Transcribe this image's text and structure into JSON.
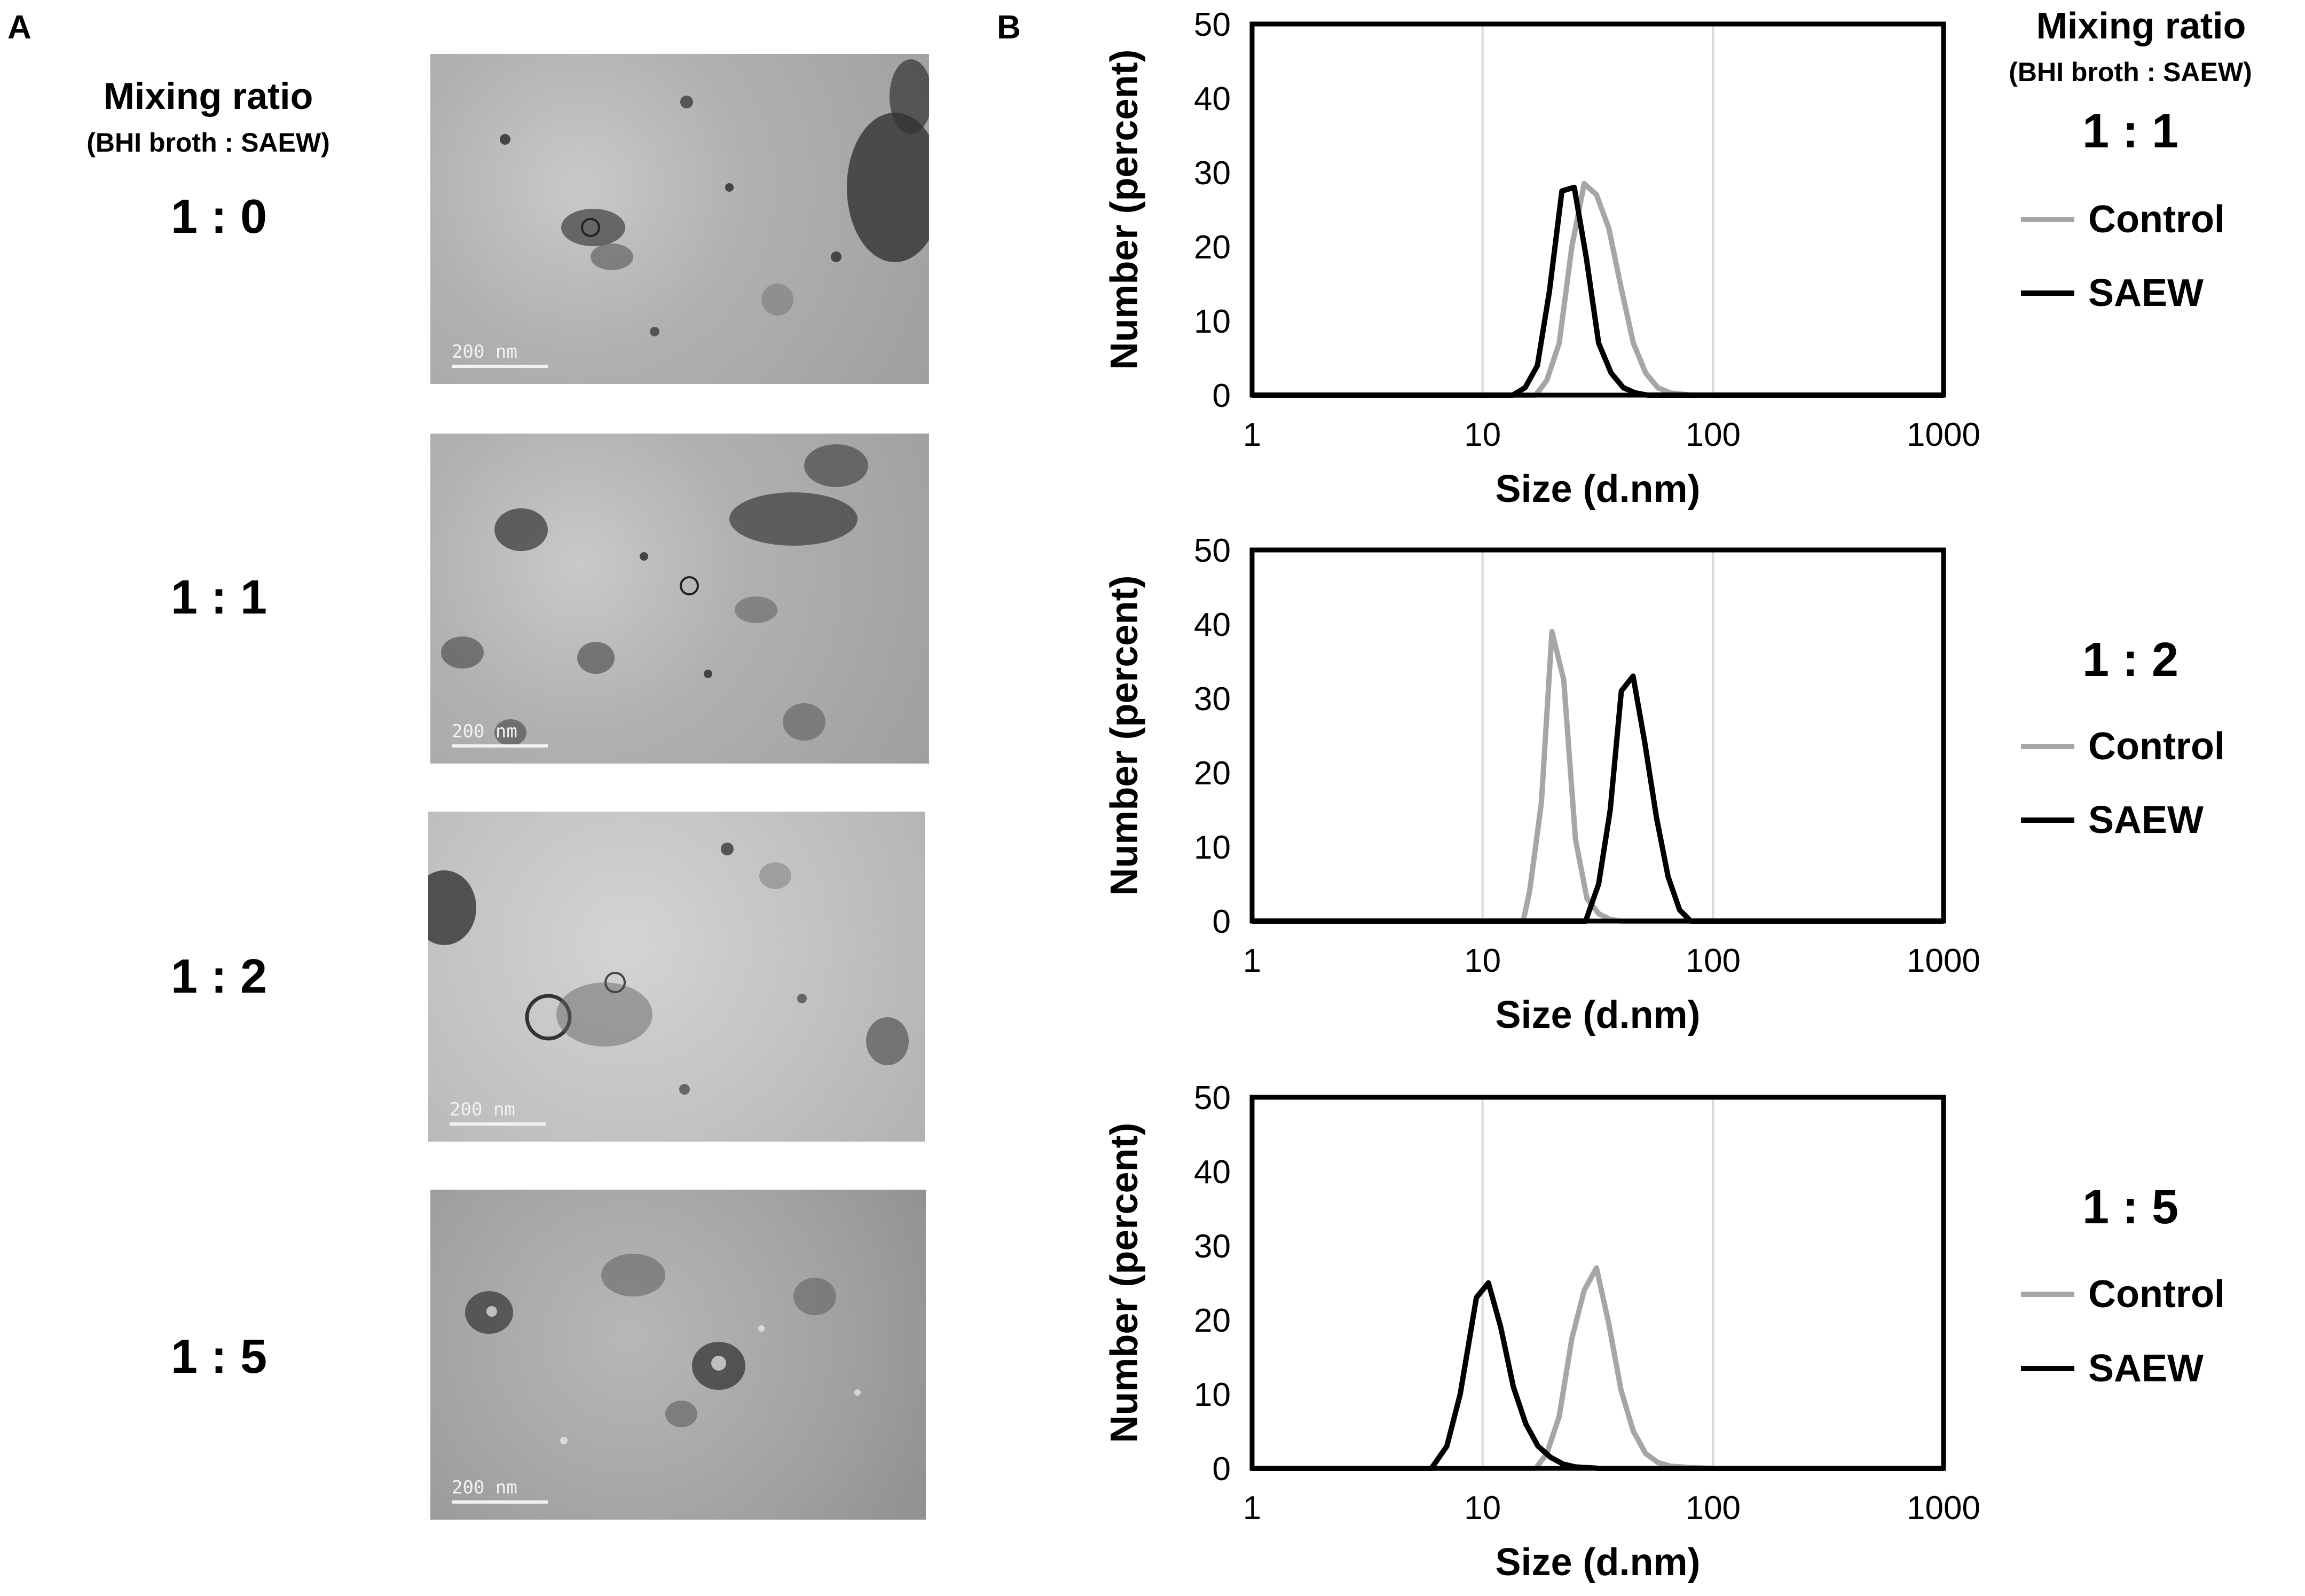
{
  "panel_a": {
    "letter": "A",
    "mixing_title": "Mixing ratio",
    "mixing_subtitle": "(BHI broth : SAEW)",
    "rows": [
      {
        "ratio": "1 : 0",
        "scale_label": "200 nm"
      },
      {
        "ratio": "1 : 1",
        "scale_label": "200 nm"
      },
      {
        "ratio": "1 : 2",
        "scale_label": "200 nm"
      },
      {
        "ratio": "1 : 5",
        "scale_label": "200 nm"
      }
    ]
  },
  "panel_b": {
    "letter": "B",
    "mixing_title": "Mixing ratio",
    "mixing_subtitle": "(BHI broth : SAEW)"
  },
  "colors": {
    "control": "#a6a6a6",
    "saew": "#000000",
    "grid": "#d9d9d9"
  },
  "chart_data": [
    {
      "type": "line",
      "ratio": "1 : 1",
      "xlabel": "Size (d.nm)",
      "ylabel": "Number (percent)",
      "x_scale": "log",
      "xlim": [
        1,
        1000
      ],
      "ylim": [
        0,
        50
      ],
      "x_ticks": [
        "1",
        "10",
        "100",
        "1000"
      ],
      "y_ticks": [
        "0",
        "10",
        "20",
        "30",
        "40",
        "50"
      ],
      "legend_position": "right",
      "series": [
        {
          "name": "Control",
          "x": [
            1,
            17,
            19,
            21.5,
            24.4,
            27.6,
            31.2,
            35.3,
            39.9,
            45.1,
            51,
            57.6,
            65.2,
            80,
            100,
            1000
          ],
          "y": [
            0,
            0,
            2,
            7,
            20,
            28.5,
            27,
            22.5,
            14.5,
            7,
            3,
            1,
            0.3,
            0,
            0,
            0
          ]
        },
        {
          "name": "SAEW",
          "x": [
            1,
            13.5,
            15.3,
            17.3,
            19.5,
            22.1,
            25,
            28.2,
            31.9,
            36.1,
            40.8,
            46,
            52,
            60,
            100,
            1000
          ],
          "y": [
            0,
            0,
            1,
            4,
            14,
            27.5,
            28,
            18.5,
            7,
            3,
            1,
            0.3,
            0,
            0,
            0,
            0
          ]
        }
      ]
    },
    {
      "type": "line",
      "ratio": "1 : 2",
      "xlabel": "Size (d.nm)",
      "ylabel": "Number (percent)",
      "x_scale": "log",
      "xlim": [
        1,
        1000
      ],
      "ylim": [
        0,
        50
      ],
      "x_ticks": [
        "1",
        "10",
        "100",
        "1000"
      ],
      "y_ticks": [
        "0",
        "10",
        "20",
        "30",
        "40",
        "50"
      ],
      "legend_position": "right",
      "series": [
        {
          "name": "Control",
          "x": [
            1,
            15,
            16,
            18,
            20,
            22.5,
            25.3,
            28.4,
            31.9,
            35.8,
            40,
            45,
            80,
            1000
          ],
          "y": [
            0,
            0,
            4,
            16,
            39,
            32.5,
            11,
            3,
            1,
            0.2,
            0,
            0,
            0,
            0
          ]
        },
        {
          "name": "SAEW",
          "x": [
            1,
            28,
            31.9,
            35.8,
            40,
            45,
            50.6,
            56.8,
            63.8,
            71.6,
            80,
            100,
            1000
          ],
          "y": [
            0,
            0,
            5,
            15,
            31,
            33,
            24,
            14,
            6,
            1.5,
            0,
            0,
            0
          ]
        }
      ]
    },
    {
      "type": "line",
      "ratio": "1 : 5",
      "xlabel": "Size (d.nm)",
      "ylabel": "Number (percent)",
      "x_scale": "log",
      "xlim": [
        1,
        1000
      ],
      "ylim": [
        0,
        50
      ],
      "x_ticks": [
        "1",
        "10",
        "100",
        "1000"
      ],
      "y_ticks": [
        "0",
        "10",
        "20",
        "30",
        "40",
        "50"
      ],
      "legend_position": "right",
      "series": [
        {
          "name": "Control",
          "x": [
            1,
            17,
            19,
            21.5,
            24.4,
            27.6,
            31.2,
            35.3,
            39.9,
            45.1,
            51,
            57.6,
            65.2,
            80,
            100,
            1000
          ],
          "y": [
            0,
            0,
            2,
            7,
            17.5,
            24,
            27,
            19.5,
            10.5,
            5,
            2,
            0.8,
            0.3,
            0.1,
            0,
            0
          ]
        },
        {
          "name": "SAEW",
          "x": [
            1,
            6,
            7,
            8,
            9.4,
            10.6,
            12,
            13.6,
            15.4,
            17.4,
            19.7,
            22.3,
            25.2,
            28.5,
            32,
            40,
            1000
          ],
          "y": [
            0,
            0,
            3,
            10,
            23,
            25,
            19,
            11,
            6,
            3,
            1.5,
            0.6,
            0.2,
            0.1,
            0,
            0,
            0
          ]
        }
      ]
    }
  ]
}
